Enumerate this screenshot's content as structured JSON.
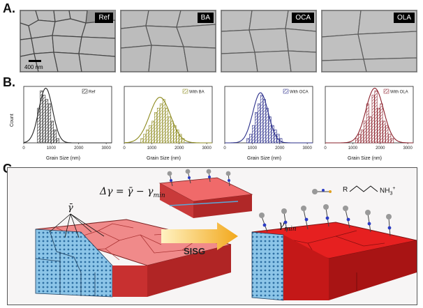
{
  "panels": {
    "a": "A.",
    "b": "B.",
    "c": "C."
  },
  "sem": {
    "labels": [
      "Ref",
      "BA",
      "OCA",
      "OLA"
    ],
    "scale_bar": "400 nm"
  },
  "histograms": {
    "y_label": "Count",
    "x_label": "Grain Size (nm)",
    "x_ticks": [
      "0",
      "1000",
      "2000",
      "3000"
    ],
    "colors": [
      "#222222",
      "#8d8a1e",
      "#2a2e8a",
      "#8a1f2a"
    ]
  },
  "chart_data": [
    {
      "type": "bar",
      "legend": "Ref",
      "xlabel": "Grain Size (nm)",
      "ylabel": "Count",
      "xlim": [
        0,
        3200
      ],
      "bin_width": 100,
      "bins": [
        500,
        600,
        700,
        800,
        900,
        1000,
        1100,
        1200
      ],
      "values": [
        8,
        12,
        11,
        10,
        9,
        5,
        3,
        1
      ],
      "fit": {
        "mean": 800,
        "sd": 250
      }
    },
    {
      "type": "bar",
      "legend": "With BA",
      "xlabel": "Grain Size (nm)",
      "ylabel": "Count",
      "xlim": [
        0,
        3200
      ],
      "bin_width": 100,
      "bins": [
        600,
        700,
        800,
        900,
        1000,
        1100,
        1200,
        1300,
        1400,
        1500,
        1600,
        1700,
        1800,
        1900,
        2000,
        2100
      ],
      "values": [
        1,
        2,
        3,
        4,
        5,
        7,
        8,
        9,
        10,
        8,
        6,
        5,
        4,
        3,
        2,
        1
      ],
      "fit": {
        "mean": 1300,
        "sd": 380
      }
    },
    {
      "type": "bar",
      "legend": "With OCA",
      "xlabel": "Grain Size (nm)",
      "ylabel": "Count",
      "xlim": [
        0,
        3200
      ],
      "bin_width": 100,
      "bins": [
        800,
        900,
        1000,
        1100,
        1200,
        1300,
        1400,
        1500,
        1600,
        1700,
        1800,
        1900,
        2000
      ],
      "values": [
        1,
        2,
        4,
        7,
        9,
        11,
        10,
        8,
        6,
        4,
        3,
        2,
        1
      ],
      "fit": {
        "mean": 1300,
        "sd": 280
      }
    },
    {
      "type": "bar",
      "legend": "With OLA",
      "xlabel": "Grain Size (nm)",
      "ylabel": "Count",
      "xlim": [
        0,
        3200
      ],
      "bin_width": 100,
      "bins": [
        1100,
        1200,
        1300,
        1400,
        1500,
        1600,
        1700,
        1800,
        1900,
        2000,
        2100,
        2200,
        2300,
        2400
      ],
      "values": [
        1,
        2,
        3,
        5,
        9,
        6,
        11,
        12,
        8,
        9,
        5,
        4,
        2,
        1
      ],
      "fit": {
        "mean": 1800,
        "sd": 320
      }
    }
  ],
  "schematic": {
    "equation_left": "Δγ = ",
    "gbar_1": "γ̄",
    "equation_mid": " − γ",
    "min_sub": "min",
    "gbar_label": "γ̄",
    "gmin_label": "γ",
    "arrow_label": "SISG",
    "molecule_r": "R",
    "molecule_nh3": "NH",
    "nh3_sub": "3",
    "nh3_sup": "+"
  }
}
